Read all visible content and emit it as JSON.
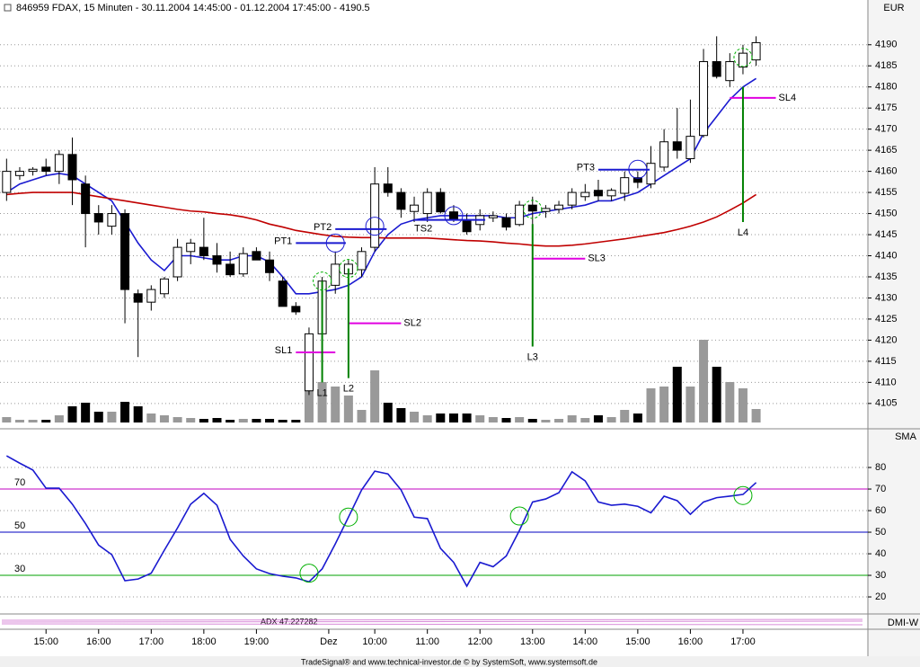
{
  "header": {
    "title": "846959 FDAX, 15 Minuten - 30.11.2004 14:45:00 - 01.12.2004 17:45:00 - 4190.5",
    "footer": "TradeSignal® and www.technical-investor.de © by SystemSoft, www.systemsoft.de",
    "dmi_panel": "DMI-W",
    "dmi_label": "ADX 47.227282"
  },
  "chart_data": [
    {
      "type": "candlestick",
      "axis_label": "EUR",
      "open": [
        4155,
        4159,
        4160,
        4161,
        4160,
        4164,
        4157,
        4150,
        4147,
        4150,
        4131,
        4129,
        4131,
        4135,
        4141,
        4142,
        4140,
        4138,
        4135.7,
        4141,
        4139,
        4134,
        4128,
        4108,
        4121.5,
        4133,
        4135.7,
        4136.7,
        4142,
        4157,
        4155,
        4150.5,
        4150,
        4155,
        4150.4,
        4148.5,
        4147.4,
        4149,
        4149,
        4147.4,
        4152,
        4150.5,
        4151,
        4152,
        4154,
        4155.5,
        4154.2,
        4154.8,
        4158.5,
        4157,
        4161,
        4167,
        4163,
        4168.5,
        4186,
        4181.5,
        4184.7,
        4186.4
      ],
      "high": [
        4163,
        4161,
        4161,
        4163,
        4165,
        4168,
        4159,
        4152,
        4152,
        4151,
        4132,
        4133,
        4135,
        4144,
        4144,
        4149,
        4143,
        4141,
        4142,
        4142,
        4141,
        4135,
        4129,
        4123,
        4135,
        4141,
        4139,
        4142,
        4161,
        4161,
        4156,
        4154,
        4156,
        4156,
        4152,
        4150,
        4151,
        4150.5,
        4150,
        4153,
        4154,
        4152,
        4153,
        4156,
        4157,
        4158,
        4156,
        4160,
        4160,
        4166,
        4170,
        4175,
        4177,
        4189,
        4192,
        4188,
        4190,
        4192
      ],
      "low": [
        4153,
        4158,
        4159,
        4159,
        4157,
        4152,
        4142,
        4145,
        4145,
        4124,
        4116,
        4127,
        4130,
        4134,
        4138,
        4139,
        4136,
        4135,
        4135,
        4139,
        4134,
        4128,
        4126,
        4107,
        4120,
        4131,
        4134,
        4135,
        4141,
        4154,
        4149,
        4148,
        4148,
        4150,
        4148,
        4145,
        4146,
        4148,
        4146,
        4147,
        4143,
        4149,
        4150,
        4151,
        4153,
        4153,
        4153,
        4153,
        4156,
        4156,
        4160,
        4163,
        4162,
        4168,
        4182,
        4180,
        4183,
        4185
      ],
      "close": [
        4160,
        4160,
        4160.5,
        4160,
        4164,
        4158,
        4150,
        4148,
        4150,
        4132,
        4129,
        4132,
        4134.5,
        4142,
        4143,
        4140,
        4138,
        4135.5,
        4140.5,
        4139,
        4136,
        4128,
        4126.7,
        4121.5,
        4134,
        4138,
        4138,
        4141,
        4157,
        4155,
        4151,
        4152,
        4155,
        4150.4,
        4148.7,
        4145.7,
        4149.5,
        4149.5,
        4146.8,
        4152,
        4150.6,
        4151.2,
        4152,
        4155,
        4155,
        4154.2,
        4155.5,
        4158.5,
        4157.4,
        4161.9,
        4167,
        4165,
        4168.3,
        4186,
        4182.5,
        4186,
        4188,
        4190.5
      ],
      "volume": [
        6,
        3,
        3,
        3,
        8,
        18,
        22,
        12,
        12,
        23,
        18,
        10,
        8,
        6,
        5,
        4,
        5,
        3,
        4,
        4,
        4,
        3,
        3,
        50,
        45,
        40,
        30,
        14,
        58,
        22,
        16,
        12,
        8,
        10,
        10,
        10,
        8,
        6,
        5,
        6,
        4,
        3,
        4,
        8,
        5,
        8,
        6,
        14,
        10,
        38,
        40,
        62,
        40,
        92,
        62,
        45,
        38,
        15
      ],
      "series": [
        {
          "color": "#1a1ad0",
          "values": [
            4155,
            4157,
            4158,
            4159,
            4159.5,
            4159,
            4157,
            4155,
            4153,
            4148,
            4143,
            4139,
            4136.5,
            4140,
            4140,
            4139.5,
            4139,
            4139,
            4140,
            4140,
            4138.5,
            4135,
            4131,
            4131,
            4131.5,
            4132,
            4133,
            4135,
            4141,
            4145,
            4147.5,
            4148.5,
            4149,
            4149.5,
            4149.5,
            4149.5,
            4149.5,
            4149.5,
            4149,
            4149,
            4150,
            4150.5,
            4151,
            4151.5,
            4152,
            4153,
            4153,
            4154,
            4155,
            4157,
            4159,
            4161,
            4163,
            4169,
            4173,
            4177,
            4180,
            4182
          ]
        },
        {
          "color": "#c00000",
          "values": [
            4154.5,
            4154.8,
            4155,
            4155,
            4155,
            4155,
            4154.5,
            4154,
            4153.5,
            4153,
            4152.5,
            4152,
            4151.5,
            4151,
            4150.6,
            4150.4,
            4150,
            4149.7,
            4149.2,
            4148.5,
            4147.5,
            4146.8,
            4146,
            4145.5,
            4145,
            4144.6,
            4144.4,
            4144.3,
            4144.3,
            4144.2,
            4144.2,
            4144.2,
            4144.2,
            4144,
            4143.8,
            4143.6,
            4143.5,
            4143.3,
            4143,
            4142.8,
            4142.5,
            4142.3,
            4142.3,
            4142.5,
            4142.8,
            4143.2,
            4143.6,
            4144,
            4144.5,
            4145,
            4145.5,
            4146.2,
            4147,
            4148,
            4149.2,
            4150.8,
            4152.5,
            4154.5
          ]
        }
      ],
      "annotations": [
        {
          "label": "PT1",
          "color": "#1a1ad0",
          "x": [
            22,
            25.8
          ],
          "y": [
            4143,
            4143
          ]
        },
        {
          "label": "PT2",
          "color": "#1a1ad0",
          "x": [
            25,
            28.9
          ],
          "y": [
            4146.3,
            4146.3
          ]
        },
        {
          "label": "PT3",
          "color": "#1a1ad0",
          "x": [
            45,
            48.9
          ],
          "y": [
            4160.4,
            4160.4
          ]
        },
        {
          "label": "TS2",
          "color": "#1a1ad0",
          "x": [
            31,
            36.4
          ],
          "y": [
            4148.5,
            4148.5
          ]
        },
        {
          "label": "SL1",
          "color": "#e000e0",
          "x": [
            22,
            25
          ],
          "y": [
            4117.1,
            4117.1
          ]
        },
        {
          "label": "SL2",
          "color": "#e000e0",
          "x": [
            26,
            30
          ],
          "y": [
            4124,
            4124
          ]
        },
        {
          "label": "SL3",
          "color": "#e000e0",
          "x": [
            40,
            44
          ],
          "y": [
            4139.3,
            4139.3
          ]
        },
        {
          "label": "SL4",
          "color": "#e000e0",
          "x": [
            55,
            58.5
          ],
          "y": [
            4177.4,
            4177.4
          ]
        },
        {
          "label": "L1",
          "color": "#008000",
          "x": [
            24,
            24
          ],
          "y": [
            4134,
            4110
          ]
        },
        {
          "label": "L2",
          "color": "#008000",
          "x": [
            26,
            26
          ],
          "y": [
            4137,
            4111
          ]
        },
        {
          "label": "L3",
          "color": "#008000",
          "x": [
            40,
            40
          ],
          "y": [
            4147.5,
            4118.5
          ]
        },
        {
          "label": "L4",
          "color": "#008000",
          "x": [
            56,
            56
          ],
          "y": [
            4180,
            4148
          ]
        }
      ],
      "markers": [
        {
          "x": 24,
          "y": 4134,
          "color": "#00b000"
        },
        {
          "x": 26,
          "y": 4137,
          "color": "#00b000"
        },
        {
          "x": 40,
          "y": 4151,
          "color": "#00b000"
        },
        {
          "x": 56,
          "y": 4187,
          "color": "#00b000"
        },
        {
          "x": 25,
          "y": 4143,
          "color": "#1a1ad0"
        },
        {
          "x": 28,
          "y": 4147,
          "color": "#1a1ad0"
        },
        {
          "x": 34,
          "y": 4149.5,
          "color": "#1a1ad0"
        },
        {
          "x": 48,
          "y": 4160.5,
          "color": "#1a1ad0"
        }
      ],
      "xlim": [
        -0.5,
        65.5
      ],
      "ylim": [
        4099,
        4200.6
      ],
      "y2lim": [
        0,
        470
      ],
      "yticks": [
        4105,
        4110,
        4115,
        4120,
        4125,
        4130,
        4135,
        4140,
        4145,
        4150,
        4155,
        4160,
        4165,
        4170,
        4175,
        4180,
        4185,
        4190
      ],
      "grid": true
    },
    {
      "type": "line",
      "axis_label": "SMA",
      "color": "#1a1ad0",
      "values": [
        85.4,
        82,
        78.8,
        70.4,
        70.4,
        63,
        54,
        44,
        39.6,
        27.5,
        28.3,
        31,
        41.7,
        52,
        63,
        68,
        62.5,
        46.7,
        39,
        33,
        30.8,
        29.6,
        28.8,
        27,
        33,
        44.6,
        57,
        69.6,
        78.3,
        77,
        69.6,
        57,
        56.3,
        42.5,
        36,
        25,
        36,
        34,
        39,
        50.8,
        64,
        65.4,
        68.3,
        78,
        73.8,
        64,
        62.5,
        63,
        62,
        59,
        66.7,
        64.6,
        58.3,
        64,
        66,
        66.7,
        67.5,
        73
      ],
      "levels": [
        70,
        50,
        30
      ],
      "level_colors": [
        "#c000c0",
        "#0000c0",
        "#00a000"
      ],
      "markers": [
        {
          "x": 23,
          "y": 31,
          "color": "#00b000"
        },
        {
          "x": 26,
          "y": 57,
          "color": "#00b000"
        },
        {
          "x": 39,
          "y": 57.5,
          "color": "#00b000"
        },
        {
          "x": 56,
          "y": 67,
          "color": "#00b000"
        }
      ],
      "xlim": [
        -0.5,
        65.5
      ],
      "ylim": [
        12.1,
        97.1
      ],
      "yticks": [
        20,
        30,
        40,
        50,
        60,
        70,
        80
      ],
      "grid": true,
      "xticks": [
        {
          "value": 3,
          "label": "15:00"
        },
        {
          "value": 7,
          "label": "16:00"
        },
        {
          "value": 11,
          "label": "17:00"
        },
        {
          "value": 15,
          "label": "18:00"
        },
        {
          "value": 19,
          "label": "19:00"
        },
        {
          "value": 24.5,
          "label": "Dez"
        },
        {
          "value": 28,
          "label": "10:00"
        },
        {
          "value": 32,
          "label": "11:00"
        },
        {
          "value": 36,
          "label": "12:00"
        },
        {
          "value": 40,
          "label": "13:00"
        },
        {
          "value": 44,
          "label": "14:00"
        },
        {
          "value": 48,
          "label": "15:00"
        },
        {
          "value": 52,
          "label": "16:00"
        },
        {
          "value": 56,
          "label": "17:00"
        }
      ]
    }
  ]
}
